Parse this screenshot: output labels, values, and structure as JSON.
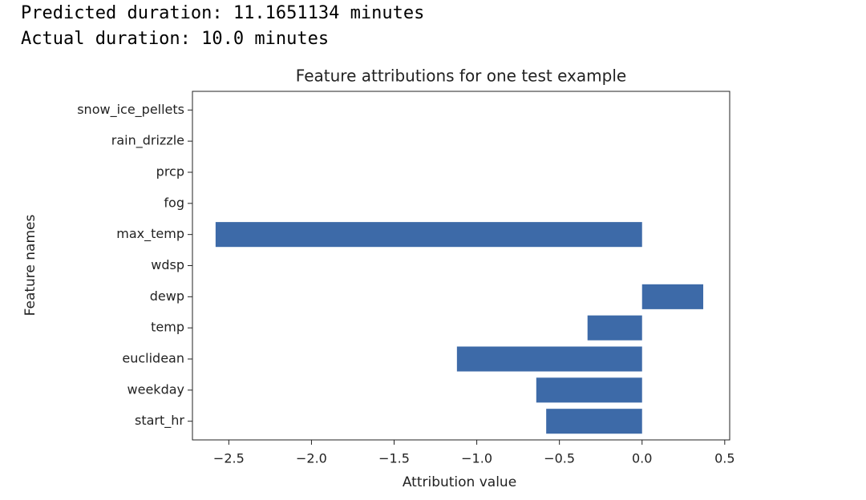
{
  "output_lines": [
    "Predicted duration: 11.1651134 minutes",
    "Actual duration: 10.0 minutes"
  ],
  "chart_data": {
    "type": "barh",
    "title": "Feature attributions for one test example",
    "x_label": "Attribution value",
    "y_label": "Feature names",
    "categories": [
      "snow_ice_pellets",
      "rain_drizzle",
      "prcp",
      "fog",
      "max_temp",
      "wdsp",
      "dewp",
      "temp",
      "euclidean",
      "weekday",
      "start_hr"
    ],
    "values": [
      0,
      0,
      0,
      0,
      -2.58,
      0,
      0.37,
      -0.33,
      -1.12,
      -0.64,
      -0.58
    ],
    "color": "#3d6aa8",
    "xlim": [
      -2.72,
      0.53
    ],
    "xticks": [
      {
        "value": -2.5,
        "label": "−2.5"
      },
      {
        "value": -2.0,
        "label": "−2.0"
      },
      {
        "value": -1.5,
        "label": "−1.5"
      },
      {
        "value": -1.0,
        "label": "−1.0"
      },
      {
        "value": -0.5,
        "label": "−0.5"
      },
      {
        "value": 0.0,
        "label": "0.0"
      },
      {
        "value": 0.5,
        "label": "0.5"
      }
    ],
    "grid": false
  }
}
